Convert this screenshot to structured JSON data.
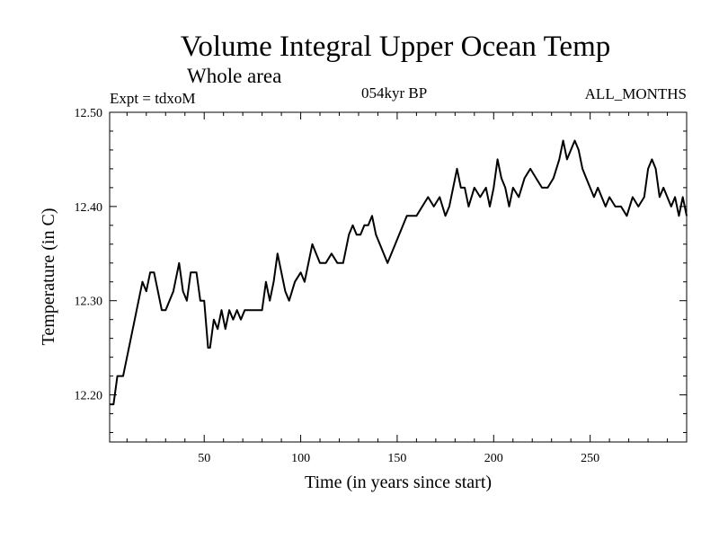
{
  "chart_data": {
    "type": "line",
    "title": "Volume Integral Upper Ocean Temp",
    "subtitle": "Whole area",
    "annotations": {
      "left": "Expt = tdxoM",
      "center": "054kyr BP",
      "right": "ALL_MONTHS"
    },
    "xlabel": "Time (in years since start)",
    "ylabel": "Temperature (in C)",
    "xlim": [
      1,
      300
    ],
    "ylim": [
      12.15,
      12.5
    ],
    "xticks": [
      50,
      100,
      150,
      200,
      250
    ],
    "xtick_labels": [
      "50",
      "100",
      "150",
      "200",
      "250"
    ],
    "yticks": [
      12.2,
      12.3,
      12.4,
      12.5
    ],
    "ytick_labels": [
      "12.20",
      "12.30",
      "12.40",
      "12.50"
    ],
    "grid": false,
    "series": [
      {
        "color": "#000000",
        "x": [
          1,
          3,
          5,
          8,
          10,
          12,
          14,
          16,
          18,
          20,
          22,
          24,
          26,
          28,
          30,
          32,
          34,
          37,
          39,
          41,
          43,
          46,
          48,
          50,
          52,
          53,
          55,
          57,
          59,
          61,
          63,
          65,
          67,
          69,
          71,
          74,
          77,
          80,
          82,
          84,
          86,
          88,
          90,
          92,
          94,
          97,
          100,
          102,
          104,
          106,
          108,
          110,
          113,
          116,
          119,
          122,
          125,
          127,
          129,
          131,
          133,
          135,
          137,
          139,
          141,
          143,
          145,
          147,
          149,
          151,
          153,
          155,
          157,
          160,
          163,
          166,
          169,
          172,
          175,
          177,
          179,
          181,
          183,
          185,
          187,
          190,
          193,
          196,
          198,
          200,
          202,
          204,
          206,
          208,
          210,
          213,
          216,
          219,
          222,
          225,
          228,
          231,
          234,
          236,
          238,
          240,
          242,
          244,
          246,
          248,
          250,
          252,
          254,
          256,
          258,
          260,
          263,
          266,
          269,
          272,
          275,
          278,
          280,
          282,
          284,
          286,
          288,
          290,
          292,
          294,
          296,
          298,
          300
        ],
        "values": [
          12.19,
          12.19,
          12.22,
          12.22,
          12.24,
          12.26,
          12.28,
          12.3,
          12.32,
          12.31,
          12.33,
          12.33,
          12.31,
          12.29,
          12.29,
          12.3,
          12.31,
          12.34,
          12.31,
          12.3,
          12.33,
          12.33,
          12.3,
          12.3,
          12.25,
          12.25,
          12.28,
          12.27,
          12.29,
          12.27,
          12.29,
          12.28,
          12.29,
          12.28,
          12.29,
          12.29,
          12.29,
          12.29,
          12.32,
          12.3,
          12.32,
          12.35,
          12.33,
          12.31,
          12.3,
          12.32,
          12.33,
          12.32,
          12.34,
          12.36,
          12.35,
          12.34,
          12.34,
          12.35,
          12.34,
          12.34,
          12.37,
          12.38,
          12.37,
          12.37,
          12.38,
          12.38,
          12.39,
          12.37,
          12.36,
          12.35,
          12.34,
          12.35,
          12.36,
          12.37,
          12.38,
          12.39,
          12.39,
          12.39,
          12.4,
          12.41,
          12.4,
          12.41,
          12.39,
          12.4,
          12.42,
          12.44,
          12.42,
          12.42,
          12.4,
          12.42,
          12.41,
          12.42,
          12.4,
          12.42,
          12.45,
          12.43,
          12.42,
          12.4,
          12.42,
          12.41,
          12.43,
          12.44,
          12.43,
          12.42,
          12.42,
          12.43,
          12.45,
          12.47,
          12.45,
          12.46,
          12.47,
          12.46,
          12.44,
          12.43,
          12.42,
          12.41,
          12.42,
          12.41,
          12.4,
          12.41,
          12.4,
          12.4,
          12.39,
          12.41,
          12.4,
          12.41,
          12.44,
          12.45,
          12.44,
          12.41,
          12.42,
          12.41,
          12.4,
          12.41,
          12.39,
          12.41,
          12.39
        ]
      }
    ]
  }
}
